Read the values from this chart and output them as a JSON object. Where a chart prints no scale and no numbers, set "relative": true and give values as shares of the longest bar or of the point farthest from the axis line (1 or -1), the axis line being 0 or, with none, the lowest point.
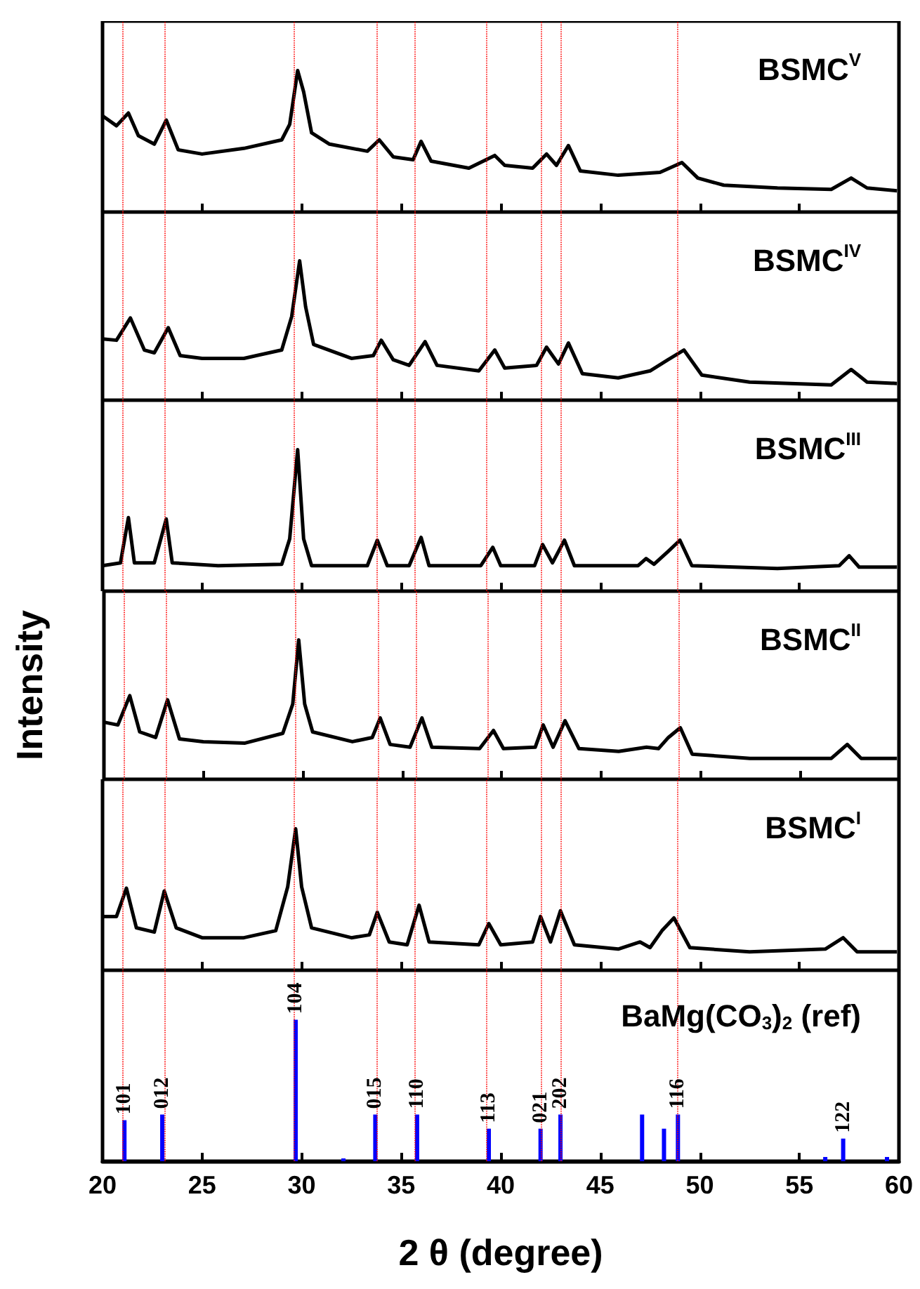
{
  "chart_data": [
    {
      "type": "line",
      "title": "BSMC$^{V}$",
      "relative": true,
      "color": "#000000",
      "marker": "none",
      "tick_labels": false,
      "xlim": [
        20,
        60
      ],
      "xticks": [
        20,
        25,
        30,
        35,
        40,
        45,
        50,
        55,
        60
      ],
      "x": [
        20,
        20.7,
        21.3,
        21.8,
        22.6,
        23.2,
        23.8,
        25.0,
        27.1,
        29.0,
        29.4,
        29.8,
        30.1,
        30.5,
        31.4,
        33.3,
        33.9,
        34.6,
        35.6,
        36.0,
        36.5,
        38.4,
        39.7,
        40.2,
        41.6,
        42.3,
        42.8,
        43.4,
        44.0,
        45.9,
        48.0,
        49.1,
        49.9,
        51.2,
        53.9,
        56.6,
        57.6,
        58.4,
        59.9
      ],
      "values": [
        0.68,
        0.61,
        0.7,
        0.54,
        0.48,
        0.65,
        0.44,
        0.41,
        0.45,
        0.51,
        0.62,
        1.0,
        0.85,
        0.56,
        0.48,
        0.43,
        0.51,
        0.39,
        0.37,
        0.5,
        0.36,
        0.31,
        0.4,
        0.33,
        0.31,
        0.41,
        0.33,
        0.47,
        0.29,
        0.26,
        0.28,
        0.35,
        0.24,
        0.19,
        0.17,
        0.16,
        0.24,
        0.17,
        0.15
      ],
      "ref_lines": [
        {
          "axis": "x",
          "value": 21.0,
          "color": "#ff0000",
          "line_style": "dotted"
        },
        {
          "axis": "x",
          "value": 23.1,
          "color": "#ff0000",
          "line_style": "dotted"
        },
        {
          "axis": "x",
          "value": 29.6,
          "color": "#ff0000",
          "line_style": "dotted"
        },
        {
          "axis": "x",
          "value": 33.8,
          "color": "#ff0000",
          "line_style": "dotted"
        },
        {
          "axis": "x",
          "value": 35.7,
          "color": "#ff0000",
          "line_style": "dotted"
        },
        {
          "axis": "x",
          "value": 39.3,
          "color": "#ff0000",
          "line_style": "dotted"
        },
        {
          "axis": "x",
          "value": 42.0,
          "color": "#ff0000",
          "line_style": "dotted"
        },
        {
          "axis": "x",
          "value": 43.0,
          "color": "#ff0000",
          "line_style": "dotted"
        },
        {
          "axis": "x",
          "value": 48.9,
          "color": "#ff0000",
          "line_style": "dotted"
        }
      ]
    },
    {
      "type": "line",
      "title": "BSMC$^{IV}$",
      "relative": true,
      "color": "#000000",
      "marker": "none",
      "tick_labels": false,
      "xlim": [
        20,
        60
      ],
      "xticks": [
        20,
        25,
        30,
        35,
        40,
        45,
        50,
        55,
        60
      ],
      "x": [
        20,
        20.7,
        21.4,
        22.1,
        22.6,
        23.3,
        23.9,
        25.0,
        27.1,
        29.0,
        29.5,
        29.9,
        30.2,
        30.6,
        32.5,
        33.6,
        34.0,
        34.6,
        35.4,
        36.2,
        36.8,
        38.9,
        39.7,
        40.2,
        41.8,
        42.3,
        42.9,
        43.4,
        44.1,
        45.9,
        47.5,
        48.4,
        49.2,
        50.1,
        52.5,
        56.6,
        57.6,
        58.4,
        59.9
      ],
      "values": [
        0.44,
        0.43,
        0.59,
        0.36,
        0.34,
        0.52,
        0.32,
        0.3,
        0.3,
        0.36,
        0.6,
        1.0,
        0.67,
        0.4,
        0.3,
        0.32,
        0.43,
        0.29,
        0.25,
        0.42,
        0.25,
        0.21,
        0.36,
        0.23,
        0.25,
        0.38,
        0.26,
        0.41,
        0.19,
        0.16,
        0.21,
        0.29,
        0.36,
        0.18,
        0.13,
        0.11,
        0.22,
        0.13,
        0.12
      ],
      "ref_lines": [
        {
          "axis": "x",
          "value": 21.0,
          "color": "#ff0000",
          "line_style": "dotted"
        },
        {
          "axis": "x",
          "value": 23.1,
          "color": "#ff0000",
          "line_style": "dotted"
        },
        {
          "axis": "x",
          "value": 29.6,
          "color": "#ff0000",
          "line_style": "dotted"
        },
        {
          "axis": "x",
          "value": 33.8,
          "color": "#ff0000",
          "line_style": "dotted"
        },
        {
          "axis": "x",
          "value": 35.7,
          "color": "#ff0000",
          "line_style": "dotted"
        },
        {
          "axis": "x",
          "value": 39.3,
          "color": "#ff0000",
          "line_style": "dotted"
        },
        {
          "axis": "x",
          "value": 42.0,
          "color": "#ff0000",
          "line_style": "dotted"
        },
        {
          "axis": "x",
          "value": 43.0,
          "color": "#ff0000",
          "line_style": "dotted"
        },
        {
          "axis": "x",
          "value": 48.9,
          "color": "#ff0000",
          "line_style": "dotted"
        }
      ]
    },
    {
      "type": "line",
      "title": "BSMC$^{III}$",
      "relative": true,
      "color": "#000000",
      "marker": "none",
      "tick_labels": false,
      "xlim": [
        20,
        60
      ],
      "xticks": [
        20,
        25,
        30,
        35,
        40,
        45,
        50,
        55,
        60
      ],
      "x": [
        20,
        20.9,
        21.3,
        21.6,
        22.6,
        23.2,
        23.5,
        25.8,
        29.0,
        29.4,
        29.8,
        30.1,
        30.5,
        33.3,
        33.8,
        34.3,
        35.4,
        36.0,
        36.4,
        39.0,
        39.6,
        40.0,
        41.7,
        42.1,
        42.6,
        43.2,
        43.7,
        46.9,
        47.3,
        47.7,
        48.4,
        49.0,
        49.6,
        53.9,
        57.0,
        57.5,
        58.0,
        59.9
      ],
      "values": [
        0.18,
        0.2,
        0.52,
        0.2,
        0.2,
        0.51,
        0.2,
        0.18,
        0.19,
        0.37,
        1.0,
        0.37,
        0.18,
        0.18,
        0.36,
        0.18,
        0.18,
        0.38,
        0.18,
        0.18,
        0.31,
        0.18,
        0.18,
        0.33,
        0.2,
        0.36,
        0.18,
        0.18,
        0.23,
        0.19,
        0.28,
        0.36,
        0.18,
        0.16,
        0.18,
        0.25,
        0.17,
        0.17
      ],
      "ref_lines": [
        {
          "axis": "x",
          "value": 21.0,
          "color": "#ff0000",
          "line_style": "dotted"
        },
        {
          "axis": "x",
          "value": 23.1,
          "color": "#ff0000",
          "line_style": "dotted"
        },
        {
          "axis": "x",
          "value": 29.6,
          "color": "#ff0000",
          "line_style": "dotted"
        },
        {
          "axis": "x",
          "value": 33.8,
          "color": "#ff0000",
          "line_style": "dotted"
        },
        {
          "axis": "x",
          "value": 35.7,
          "color": "#ff0000",
          "line_style": "dotted"
        },
        {
          "axis": "x",
          "value": 39.3,
          "color": "#ff0000",
          "line_style": "dotted"
        },
        {
          "axis": "x",
          "value": 42.0,
          "color": "#ff0000",
          "line_style": "dotted"
        },
        {
          "axis": "x",
          "value": 43.0,
          "color": "#ff0000",
          "line_style": "dotted"
        },
        {
          "axis": "x",
          "value": 48.9,
          "color": "#ff0000",
          "line_style": "dotted"
        }
      ]
    },
    {
      "type": "line",
      "title": "BSMC$^{II}$",
      "ylabel": "Intensity",
      "relative": true,
      "color": "#000000",
      "marker": "none",
      "tick_labels": false,
      "xlim": [
        20,
        60
      ],
      "xticks": [
        20,
        25,
        30,
        35,
        40,
        45,
        50,
        55,
        60
      ],
      "x": [
        20,
        20.7,
        21.3,
        21.8,
        22.6,
        23.2,
        23.8,
        25.0,
        27.1,
        29.0,
        29.5,
        29.8,
        30.1,
        30.5,
        32.5,
        33.5,
        33.9,
        34.4,
        35.4,
        36.0,
        36.5,
        38.9,
        39.6,
        40.1,
        41.7,
        42.1,
        42.6,
        43.2,
        43.9,
        45.9,
        47.3,
        47.9,
        48.4,
        49.0,
        49.6,
        52.5,
        56.6,
        57.4,
        58.1,
        59.9
      ],
      "values": [
        0.41,
        0.39,
        0.6,
        0.34,
        0.3,
        0.57,
        0.29,
        0.27,
        0.26,
        0.33,
        0.54,
        1.0,
        0.54,
        0.34,
        0.27,
        0.3,
        0.44,
        0.25,
        0.23,
        0.44,
        0.23,
        0.22,
        0.35,
        0.22,
        0.23,
        0.39,
        0.23,
        0.42,
        0.22,
        0.2,
        0.23,
        0.22,
        0.3,
        0.37,
        0.18,
        0.15,
        0.15,
        0.25,
        0.15,
        0.15
      ],
      "ref_lines": [
        {
          "axis": "x",
          "value": 21.0,
          "color": "#ff0000",
          "line_style": "dotted"
        },
        {
          "axis": "x",
          "value": 23.1,
          "color": "#ff0000",
          "line_style": "dotted"
        },
        {
          "axis": "x",
          "value": 29.6,
          "color": "#ff0000",
          "line_style": "dotted"
        },
        {
          "axis": "x",
          "value": 33.8,
          "color": "#ff0000",
          "line_style": "dotted"
        },
        {
          "axis": "x",
          "value": 35.7,
          "color": "#ff0000",
          "line_style": "dotted"
        },
        {
          "axis": "x",
          "value": 39.3,
          "color": "#ff0000",
          "line_style": "dotted"
        },
        {
          "axis": "x",
          "value": 42.0,
          "color": "#ff0000",
          "line_style": "dotted"
        },
        {
          "axis": "x",
          "value": 43.0,
          "color": "#ff0000",
          "line_style": "dotted"
        },
        {
          "axis": "x",
          "value": 48.9,
          "color": "#ff0000",
          "line_style": "dotted"
        }
      ]
    },
    {
      "type": "line",
      "title": "BSMC$^{I}$",
      "relative": true,
      "color": "#000000",
      "marker": "none",
      "tick_labels": false,
      "xlim": [
        20,
        60
      ],
      "xticks": [
        20,
        25,
        30,
        35,
        40,
        45,
        50,
        55,
        60
      ],
      "x": [
        20,
        20.7,
        21.2,
        21.7,
        22.6,
        23.1,
        23.7,
        25.0,
        27.1,
        28.7,
        29.3,
        29.7,
        30.0,
        30.5,
        32.5,
        33.4,
        33.8,
        34.4,
        35.3,
        35.9,
        36.4,
        38.9,
        39.4,
        40.0,
        41.6,
        42.0,
        42.5,
        43.0,
        43.7,
        45.9,
        47.0,
        47.5,
        48.1,
        48.7,
        49.5,
        52.5,
        56.3,
        57.2,
        57.9,
        59.9
      ],
      "values": [
        0.38,
        0.38,
        0.58,
        0.3,
        0.27,
        0.56,
        0.3,
        0.23,
        0.23,
        0.28,
        0.59,
        1.0,
        0.59,
        0.3,
        0.23,
        0.25,
        0.41,
        0.2,
        0.18,
        0.46,
        0.2,
        0.18,
        0.33,
        0.18,
        0.2,
        0.38,
        0.2,
        0.42,
        0.18,
        0.15,
        0.2,
        0.16,
        0.28,
        0.37,
        0.16,
        0.13,
        0.15,
        0.23,
        0.13,
        0.13
      ],
      "ref_lines": [
        {
          "axis": "x",
          "value": 21.0,
          "color": "#ff0000",
          "line_style": "dotted"
        },
        {
          "axis": "x",
          "value": 23.1,
          "color": "#ff0000",
          "line_style": "dotted"
        },
        {
          "axis": "x",
          "value": 29.6,
          "color": "#ff0000",
          "line_style": "dotted"
        },
        {
          "axis": "x",
          "value": 33.8,
          "color": "#ff0000",
          "line_style": "dotted"
        },
        {
          "axis": "x",
          "value": 35.7,
          "color": "#ff0000",
          "line_style": "dotted"
        },
        {
          "axis": "x",
          "value": 39.3,
          "color": "#ff0000",
          "line_style": "dotted"
        },
        {
          "axis": "x",
          "value": 42.0,
          "color": "#ff0000",
          "line_style": "dotted"
        },
        {
          "axis": "x",
          "value": 43.0,
          "color": "#ff0000",
          "line_style": "dotted"
        },
        {
          "axis": "x",
          "value": 48.9,
          "color": "#ff0000",
          "line_style": "dotted"
        }
      ]
    },
    {
      "type": "bar",
      "title": "BaMg(CO$_{3}$)$_{2}$ (ref)",
      "xlabel": "2 θ (degree)",
      "relative": true,
      "color": "#0000ff",
      "tick_labels": "x",
      "xlim": [
        20,
        60
      ],
      "xticks": [
        20,
        25,
        30,
        35,
        40,
        45,
        50,
        55,
        60
      ],
      "x": [
        21.1,
        23.0,
        29.7,
        32.1,
        33.7,
        35.8,
        39.4,
        42.0,
        43.0,
        47.1,
        48.2,
        48.9,
        56.3,
        57.2,
        59.4
      ],
      "values": [
        0.29,
        0.33,
        1.0,
        0.02,
        0.33,
        0.33,
        0.23,
        0.23,
        0.33,
        0.33,
        0.23,
        0.33,
        0.03,
        0.16,
        0.03
      ],
      "annotations": [
        {
          "text": "101",
          "x": 21.1,
          "y": 0.29
        },
        {
          "text": "012",
          "x": 23.0,
          "y": 0.33
        },
        {
          "text": "104",
          "x": 29.7,
          "y": 1.0
        },
        {
          "text": "015",
          "x": 33.7,
          "y": 0.33
        },
        {
          "text": "110",
          "x": 35.8,
          "y": 0.33
        },
        {
          "text": "113",
          "x": 39.4,
          "y": 0.23
        },
        {
          "text": "021",
          "x": 42.0,
          "y": 0.23
        },
        {
          "text": "202",
          "x": 43.0,
          "y": 0.33
        },
        {
          "text": "116",
          "x": 48.9,
          "y": 0.33
        },
        {
          "text": "122",
          "x": 57.2,
          "y": 0.16
        }
      ],
      "ref_lines": [
        {
          "axis": "x",
          "value": 21.0,
          "color": "#ff0000",
          "line_style": "dotted"
        },
        {
          "axis": "x",
          "value": 23.1,
          "color": "#ff0000",
          "line_style": "dotted"
        },
        {
          "axis": "x",
          "value": 29.6,
          "color": "#ff0000",
          "line_style": "dotted"
        },
        {
          "axis": "x",
          "value": 33.8,
          "color": "#ff0000",
          "line_style": "dotted"
        },
        {
          "axis": "x",
          "value": 35.7,
          "color": "#ff0000",
          "line_style": "dotted"
        },
        {
          "axis": "x",
          "value": 39.3,
          "color": "#ff0000",
          "line_style": "dotted"
        },
        {
          "axis": "x",
          "value": 42.0,
          "color": "#ff0000",
          "line_style": "dotted"
        },
        {
          "axis": "x",
          "value": 43.0,
          "color": "#ff0000",
          "line_style": "dotted"
        },
        {
          "axis": "x",
          "value": 48.9,
          "color": "#ff0000",
          "line_style": "dotted"
        }
      ]
    }
  ]
}
